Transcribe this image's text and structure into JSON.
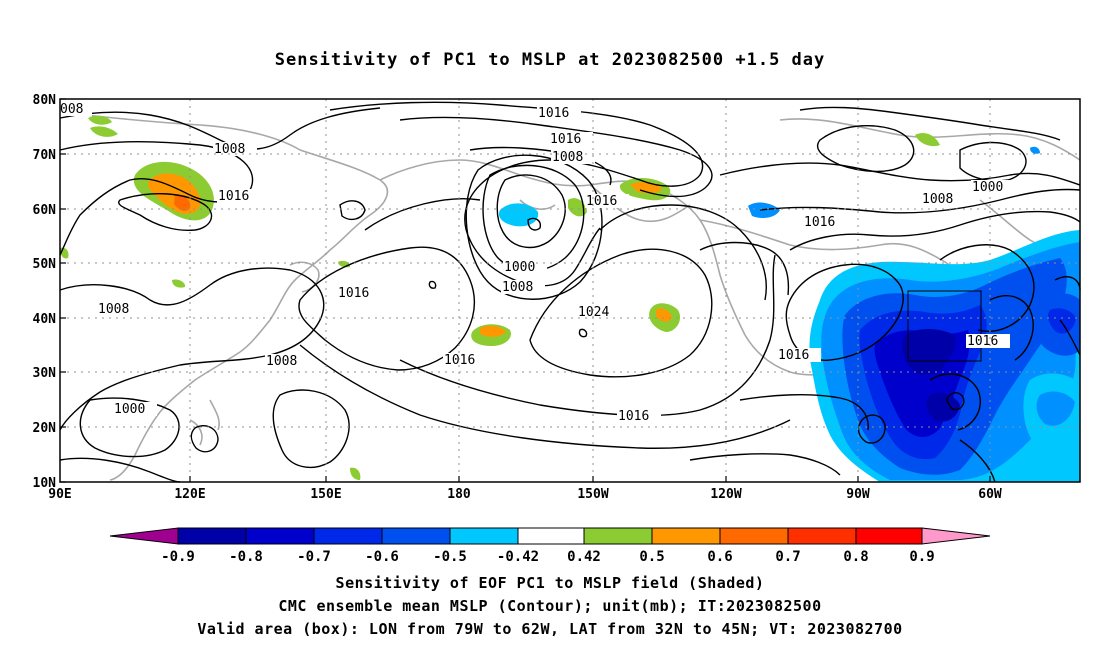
{
  "title": "Sensitivity of PC1 to MSLP at 2023082500 +1.5 day",
  "map": {
    "lat_labels": [
      "80N",
      "70N",
      "60N",
      "50N",
      "40N",
      "30N",
      "20N",
      "10N"
    ],
    "lon_labels": [
      "90E",
      "120E",
      "150E",
      "180",
      "150W",
      "120W",
      "90W",
      "60W"
    ],
    "contour_labels": [
      "008",
      "1008",
      "1016",
      "1016",
      "1016",
      "1008",
      "1016",
      "1000",
      "1008",
      "1016",
      "1000",
      "1008",
      "1024",
      "1016",
      "1008",
      "1016",
      "1000",
      "1016",
      "1016"
    ],
    "box_label": "1016",
    "colors": {
      "coast": "#a8a8a8",
      "contour": "#000000",
      "grid": "#909090"
    }
  },
  "colorbar": {
    "labels": [
      "-0.9",
      "-0.8",
      "-0.7",
      "-0.6",
      "-0.5",
      "-0.42",
      "0.42",
      "0.5",
      "0.6",
      "0.7",
      "0.8",
      "0.9"
    ],
    "colors": [
      "#a00090",
      "#0000a8",
      "#0000cd",
      "#0028e8",
      "#0050f0",
      "#0090ff",
      "#00c8ff",
      "#ffffff",
      "#8ccc32",
      "#ff9800",
      "#ff6a00",
      "#ff3000",
      "#ff0000",
      "#ff99cc"
    ]
  },
  "captions": {
    "line1": "Sensitivity of EOF PC1 to MSLP field (Shaded)",
    "line2": "CMC ensemble mean MSLP (Contour); unit(mb); IT:2023082500",
    "line3": "Valid area (box): LON from 79W to 62W, LAT from 32N to 45N; VT: 2023082700"
  }
}
